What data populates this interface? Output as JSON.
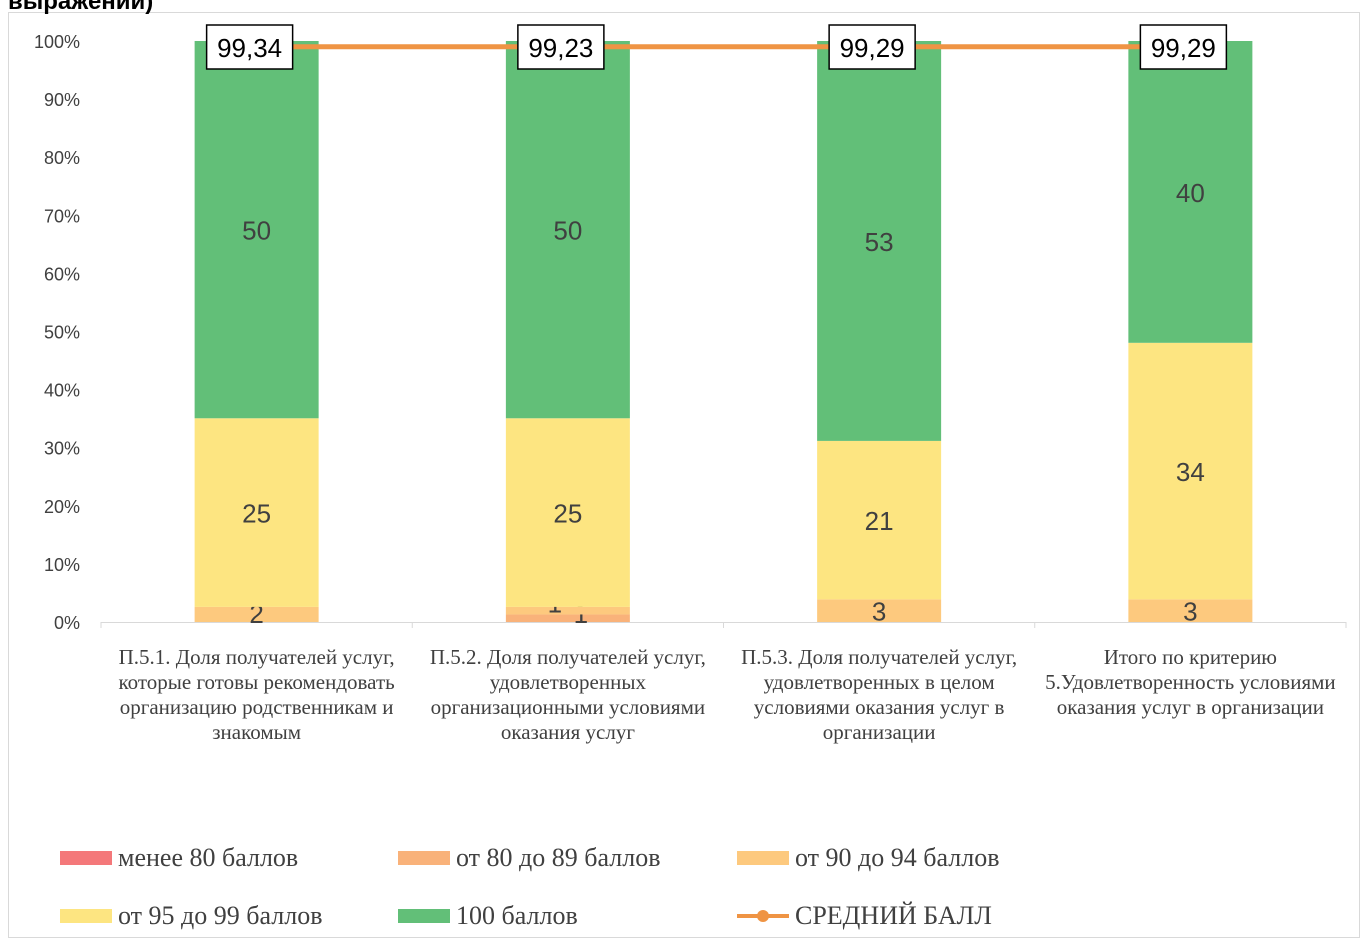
{
  "title_fragment": "выражений)",
  "colors": {
    "lt80": "#f4787a",
    "s80_89": "#f9b27a",
    "s90_94": "#fdc97e",
    "s95_99": "#fde581",
    "s100": "#62bf78",
    "avg": "#ef9444"
  },
  "chart_data": {
    "type": "bar",
    "stacked": true,
    "percent_axis": true,
    "categories": [
      "П.5.1. Доля получателей услуг, которые готовы рекомендовать организацию родственникам и знакомым",
      "П.5.2. Доля получателей услуг, удовлетворенных организационными условиями оказания услуг",
      "П.5.3. Доля получателей услуг, удовлетворенных в целом условиями оказания услуг в организации",
      "Итого по критерию 5.Удовлетворенность условиями оказания услуг в организации"
    ],
    "series": [
      {
        "name": "менее 80 баллов",
        "values": [
          0,
          0,
          0,
          0
        ]
      },
      {
        "name": "от 80 до 89 баллов",
        "values": [
          0,
          1,
          0,
          0
        ]
      },
      {
        "name": "от 90 до 94 баллов",
        "values": [
          2,
          1,
          3,
          3
        ]
      },
      {
        "name": "от 95 до 99 баллов",
        "values": [
          25,
          25,
          21,
          34
        ]
      },
      {
        "name": "100 баллов",
        "values": [
          50,
          50,
          53,
          40
        ]
      }
    ],
    "average_line": {
      "name": "СРЕДНИЙ БАЛЛ",
      "values": [
        "99,34",
        "99,23",
        "99,29",
        "99,29"
      ]
    },
    "y_ticks": [
      "0%",
      "10%",
      "20%",
      "30%",
      "40%",
      "50%",
      "60%",
      "70%",
      "80%",
      "90%",
      "100%"
    ],
    "ylim": [
      0,
      100
    ],
    "grid": false,
    "legend": "bottom"
  },
  "legend_order": [
    {
      "name": "менее 80 баллов",
      "color_key": "lt80"
    },
    {
      "name": "от 80 до 89 баллов",
      "color_key": "s80_89"
    },
    {
      "name": "от 90 до 94 баллов",
      "color_key": "s90_94"
    },
    {
      "name": "от 95 до 99 баллов",
      "color_key": "s95_99"
    },
    {
      "name": "100 баллов",
      "color_key": "s100"
    },
    {
      "name": "СРЕДНИЙ БАЛЛ",
      "color_key": "avg",
      "line": true
    }
  ]
}
